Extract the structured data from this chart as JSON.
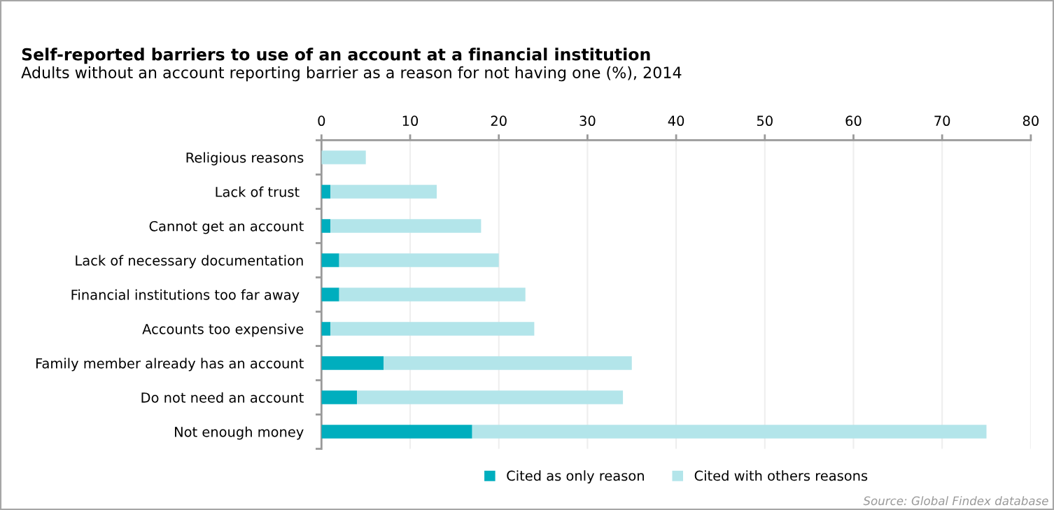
{
  "chart_data": {
    "type": "bar",
    "orientation": "horizontal",
    "stacked": true,
    "title": "Self-reported barriers to use of an account at a financial institution",
    "subtitle": "Adults without an account reporting barrier as a reason for not having one (%), 2014",
    "categories": [
      "Religious reasons",
      "Lack of trust ",
      "Cannot get an account",
      "Lack of necessary documentation",
      "Financial institutions too far away ",
      "Accounts too expensive",
      "Family member already has an account",
      "Do not need an account",
      "Not enough money"
    ],
    "series": [
      {
        "name": "Cited as only reason",
        "color": "#00aebe",
        "values": [
          0,
          1,
          1,
          2,
          2,
          1,
          7,
          4,
          17
        ]
      },
      {
        "name": "Cited with others reasons",
        "color": "#b3e5ea",
        "values": [
          5,
          12,
          17,
          18,
          21,
          23,
          28,
          30,
          58
        ]
      }
    ],
    "xlim": [
      0,
      80
    ],
    "xticks": [
      0,
      10,
      20,
      30,
      40,
      50,
      60,
      70,
      80
    ],
    "grid": "x",
    "legend": "bottom",
    "annotations": [
      "Source: Global Findex database"
    ]
  }
}
